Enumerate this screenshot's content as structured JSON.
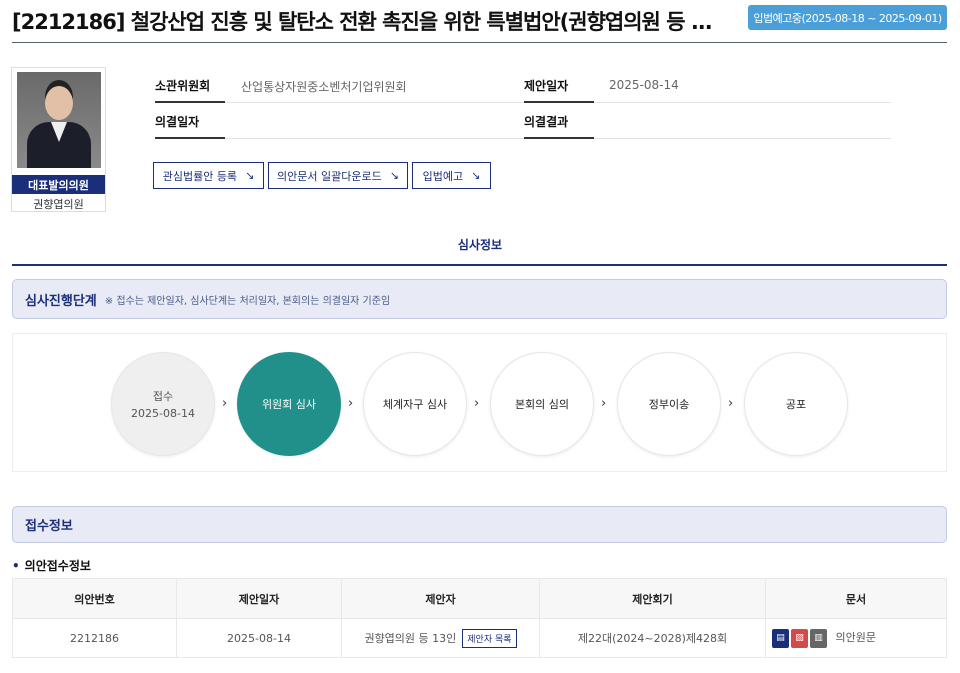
{
  "header": {
    "title": "[2212186] 철강산업 진흥 및 탈탄소 전환 촉진을 위한 특별법안(권향엽의원 등 ...",
    "badge": "입법예고중(2025-08-18 ~ 2025-09-01)"
  },
  "proposer": {
    "label": "대표발의의원",
    "name": "권향엽의원"
  },
  "info": {
    "committee_label": "소관위원회",
    "committee": "산업통상자원중소벤처기업위원회",
    "propose_date_label": "제안일자",
    "propose_date": "2025-08-14",
    "decision_date_label": "의결일자",
    "decision_date": "",
    "decision_result_label": "의결결과",
    "decision_result": ""
  },
  "buttons": {
    "interest": "관심법률안 등록",
    "download": "의안문서 일괄다운로드",
    "notice": "입법예고",
    "arrow": "↘"
  },
  "tab": "심사정보",
  "progress": {
    "title": "심사진행단계",
    "note": "※ 접수는 제안일자, 심사단계는 처리일자, 본회의는 의결일자 기준임",
    "steps": [
      {
        "label": "접수",
        "date": "2025-08-14",
        "state": "done"
      },
      {
        "label": "위원회 심사",
        "state": "active"
      },
      {
        "label": "체계자구 심사",
        "state": "pending"
      },
      {
        "label": "본회의 심의",
        "state": "pending"
      },
      {
        "label": "정부이송",
        "state": "pending"
      },
      {
        "label": "공포",
        "state": "pending"
      }
    ]
  },
  "receipt": {
    "title": "접수정보",
    "subtitle": "의안접수정보",
    "columns": [
      "의안번호",
      "제안일자",
      "제안자",
      "제안회기",
      "문서"
    ],
    "row": {
      "bill_no": "2212186",
      "date": "2025-08-14",
      "proposer": "권향엽의원 등 13인",
      "proposer_list_btn": "제안자 목록",
      "session": "제22대(2024~2028)제428회",
      "doc_label": "의안원문"
    },
    "doc_icons": [
      "hwp-icon",
      "pdf-icon",
      "preview-icon"
    ]
  },
  "colors": {
    "accent": "#1b2e7a",
    "active_step": "#21908a",
    "badge": "#4a9fd8"
  }
}
